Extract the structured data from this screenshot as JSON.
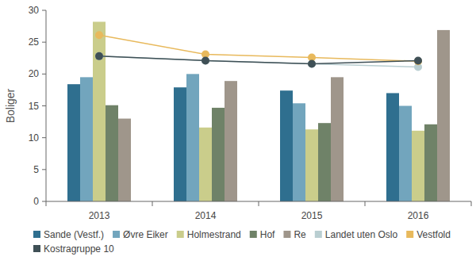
{
  "chart_data": {
    "type": "bar",
    "y_label": "Boliger",
    "categories": [
      "2013",
      "2014",
      "2015",
      "2016"
    ],
    "ylim": [
      0,
      30
    ],
    "yticks": [
      0,
      5,
      10,
      15,
      20,
      25,
      30
    ],
    "grid": false,
    "legend": "bottom",
    "series": [
      {
        "name": "Sande (Vestf.)",
        "type": "bar",
        "color": "#2f6f8f",
        "values": [
          18.4,
          17.9,
          17.4,
          17.0
        ]
      },
      {
        "name": "Øvre Eiker",
        "type": "bar",
        "color": "#72a5bd",
        "values": [
          19.5,
          20.0,
          15.4,
          15.0
        ]
      },
      {
        "name": "Holmestrand",
        "type": "bar",
        "color": "#cacd8b",
        "values": [
          28.2,
          11.6,
          11.3,
          11.1
        ]
      },
      {
        "name": "Hof",
        "type": "bar",
        "color": "#6f8268",
        "values": [
          15.1,
          14.7,
          12.3,
          12.1
        ]
      },
      {
        "name": "Re",
        "type": "bar",
        "color": "#9f968b",
        "values": [
          13.0,
          18.9,
          19.5,
          26.9
        ]
      },
      {
        "name": "Landet uten Oslo",
        "type": "line",
        "marker": "circle",
        "color": "#b9ced1",
        "values": [
          22.8,
          22.1,
          21.6,
          21.1
        ]
      },
      {
        "name": "Vestfold",
        "type": "line",
        "marker": "circle",
        "color": "#e8b95c",
        "values": [
          26.1,
          23.1,
          22.6,
          22.0
        ]
      },
      {
        "name": "Kostragruppe 10",
        "type": "line",
        "marker": "circle",
        "color": "#3f5056",
        "values": [
          22.8,
          22.1,
          21.6,
          22.1
        ]
      }
    ]
  }
}
